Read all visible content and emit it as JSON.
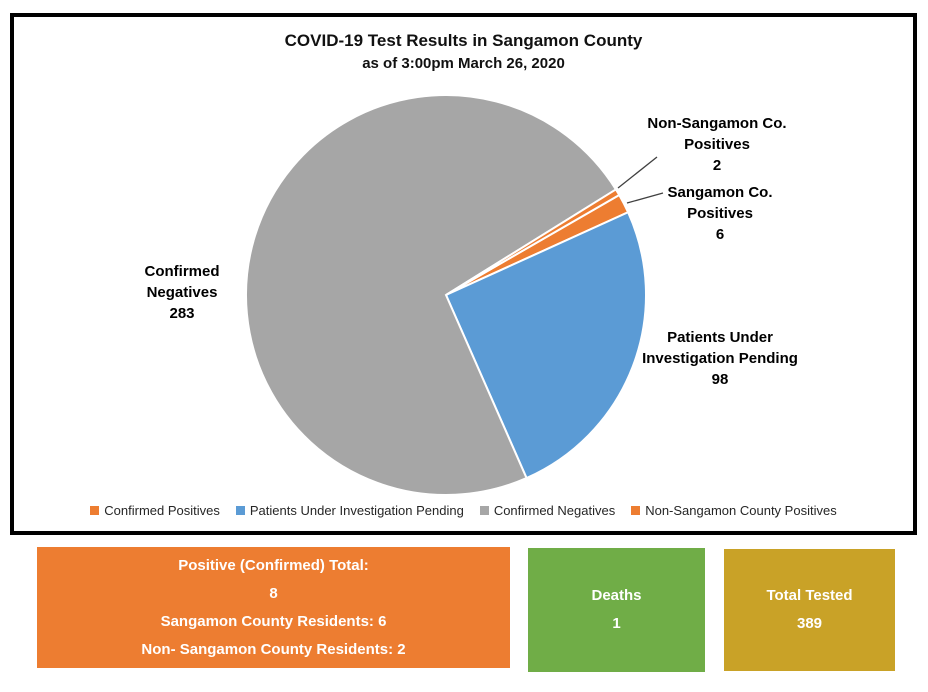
{
  "chart_data": {
    "type": "pie",
    "title": "COVID-19 Test Results in Sangamon County",
    "subtitle": "as of 3:00pm March 26, 2020",
    "total": 389,
    "start_angle_deg": 60,
    "legend_position": "bottom",
    "slices": [
      {
        "label": "Confirmed Positives",
        "value": 6,
        "color": "#ED7D31"
      },
      {
        "label": "Patients Under Investigation Pending",
        "value": 98,
        "color": "#5B9BD5"
      },
      {
        "label": "Confirmed Negatives",
        "value": 283,
        "color": "#A6A6A6"
      },
      {
        "label": "Non-Sangamon County Positives",
        "value": 2,
        "color": "#ED7D31"
      }
    ],
    "callouts": {
      "confirmed_negatives": {
        "lines": [
          "Confirmed",
          "Negatives",
          "283"
        ]
      },
      "pui": {
        "lines": [
          "Patients Under",
          "Investigation Pending",
          "98"
        ]
      },
      "non_sangamon": {
        "lines": [
          "Non-Sangamon Co.",
          "Positives",
          "2"
        ]
      },
      "sangamon": {
        "lines": [
          "Sangamon Co.",
          "Positives",
          "6"
        ]
      }
    }
  },
  "summary_boxes": {
    "positives": {
      "color": "#ED7D31",
      "lines": [
        "Positive (Confirmed) Total:",
        "8",
        "Sangamon County Residents: 6",
        "Non- Sangamon County Residents: 2"
      ]
    },
    "deaths": {
      "color": "#70AD47",
      "label": "Deaths",
      "value": "1"
    },
    "total_tested": {
      "color": "#C9A227",
      "label": "Total Tested",
      "value": "389"
    }
  }
}
